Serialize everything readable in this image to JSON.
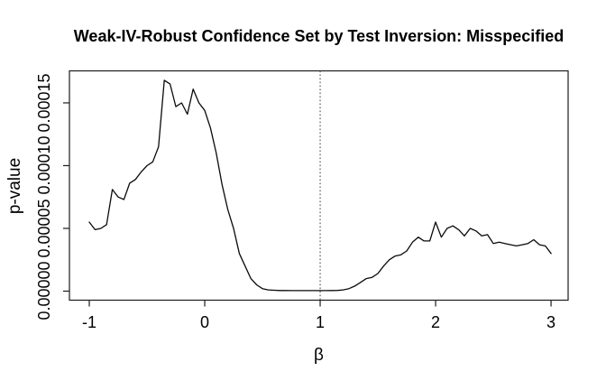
{
  "chart_data": {
    "type": "line",
    "title": "Weak-IV-Robust Confidence Set by Test Inversion: Misspecified",
    "xlabel": "β",
    "ylabel": "p-value",
    "grid": false,
    "legend": null,
    "xlim": [
      -1.172,
      3.148
    ],
    "ylim": [
      -7.2e-06,
      0.0001755
    ],
    "x_tick_labels": [
      "-1",
      "0",
      "1",
      "2",
      "3"
    ],
    "x_tick_values": [
      -1,
      0,
      1,
      2,
      3
    ],
    "y_tick_labels": [
      "0.00000",
      "0.00005",
      "0.00010",
      "0.00015"
    ],
    "y_tick_values": [
      0,
      5e-05,
      0.0001,
      0.00015
    ],
    "reference_line": {
      "x": 1,
      "style": "dotted"
    },
    "series": [
      {
        "name": "p-value curve",
        "x": [
          -1,
          -0.95,
          -0.9,
          -0.85,
          -0.8,
          -0.75,
          -0.7,
          -0.65,
          -0.6,
          -0.55,
          -0.5,
          -0.45,
          -0.4,
          -0.35,
          -0.3,
          -0.25,
          -0.2,
          -0.15,
          -0.1,
          -0.05,
          0,
          0.05,
          0.1,
          0.15,
          0.2,
          0.25,
          0.3,
          0.35,
          0.4,
          0.45,
          0.5,
          0.55,
          0.6,
          0.65,
          0.7,
          0.75,
          0.8,
          0.85,
          0.9,
          0.95,
          1,
          1.05,
          1.1,
          1.15,
          1.2,
          1.25,
          1.3,
          1.35,
          1.4,
          1.45,
          1.5,
          1.55,
          1.6,
          1.65,
          1.7,
          1.75,
          1.8,
          1.85,
          1.9,
          1.95,
          2,
          2.05,
          2.1,
          2.15,
          2.2,
          2.25,
          2.3,
          2.35,
          2.4,
          2.45,
          2.5,
          2.55,
          2.6,
          2.65,
          2.7,
          2.75,
          2.8,
          2.85,
          2.9,
          2.95,
          3
        ],
        "y": [
          5.5e-05,
          4.9e-05,
          5e-05,
          5.3e-05,
          8.1e-05,
          7.5e-05,
          7.3e-05,
          8.6e-05,
          8.9e-05,
          9.5e-05,
          0.0001,
          0.000103,
          0.000115,
          0.000168,
          0.000165,
          0.000147,
          0.00015,
          0.000141,
          0.000161,
          0.00015,
          0.000144,
          0.00013,
          0.00011,
          8.5e-05,
          6.5e-05,
          5e-05,
          3e-05,
          2e-05,
          1e-05,
          5e-06,
          2e-06,
          1e-06,
          7e-07,
          5e-07,
          5e-07,
          4e-07,
          4e-07,
          4e-07,
          4e-07,
          4e-07,
          4e-07,
          4e-07,
          5e-07,
          6e-07,
          1e-06,
          2e-06,
          4e-06,
          7e-06,
          1e-05,
          1.1e-05,
          1.4e-05,
          2e-05,
          2.5e-05,
          2.8e-05,
          2.9e-05,
          3.2e-05,
          3.9e-05,
          4.3e-05,
          4e-05,
          4e-05,
          5.5e-05,
          4.3e-05,
          5e-05,
          5.2e-05,
          4.9e-05,
          4.4e-05,
          5e-05,
          4.8e-05,
          4.4e-05,
          4.5e-05,
          3.8e-05,
          3.9e-05,
          3.8e-05,
          3.7e-05,
          3.6e-05,
          3.7e-05,
          3.8e-05,
          4.1e-05,
          3.7e-05,
          3.6e-05,
          3e-05
        ]
      }
    ]
  },
  "colors": {
    "background": "#ffffff",
    "axis": "#1c1c1c",
    "curve": "#0a0a0a",
    "reference_line": "#4d4d4d",
    "text": "#000000"
  }
}
